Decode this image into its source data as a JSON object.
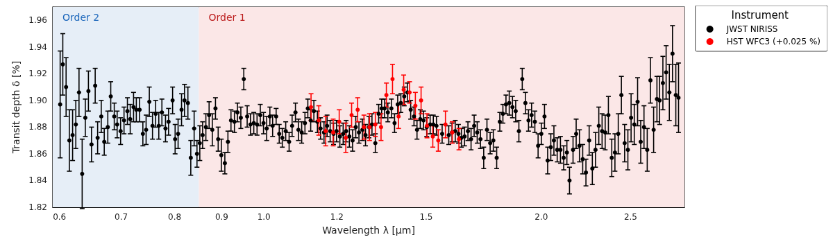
{
  "chart_data": {
    "type": "scatter",
    "xlabel": "Wavelength λ [µm]",
    "ylabel": "Transit depth δ [%]",
    "legend_title": "Instrument",
    "legend": "right",
    "marker": "circle",
    "grid": false,
    "log": "x",
    "xlim": [
      0.59,
      2.86
    ],
    "xticks": [
      0.6,
      0.7,
      0.8,
      0.9,
      {
        "value": 1,
        "label": "1.0"
      },
      1.2,
      1.5,
      {
        "value": 2,
        "label": "2.0"
      },
      2.5
    ],
    "ylim": [
      1.82,
      1.97
    ],
    "yticks": [
      1.82,
      1.84,
      1.86,
      1.88,
      {
        "value": 1.9,
        "label": "1.90"
      },
      1.92,
      1.94,
      1.96
    ],
    "bands": [
      {
        "axis": "x",
        "from": 0.59,
        "to": 0.85,
        "label": "Order 2",
        "color": "#e6eef7"
      },
      {
        "axis": "x",
        "from": 0.85,
        "to": 2.86,
        "label": "Order 1",
        "color": "#fbe7e7"
      }
    ],
    "series": [
      {
        "name": "JWST NIRISS",
        "color": "#000000",
        "x": [
          0.601,
          0.605,
          0.61,
          0.615,
          0.62,
          0.625,
          0.63,
          0.635,
          0.64,
          0.645,
          0.65,
          0.656,
          0.66,
          0.666,
          0.671,
          0.677,
          0.682,
          0.688,
          0.693,
          0.699,
          0.705,
          0.711,
          0.716,
          0.722,
          0.727,
          0.733,
          0.739,
          0.745,
          0.751,
          0.757,
          0.763,
          0.769,
          0.775,
          0.782,
          0.788,
          0.796,
          0.801,
          0.807,
          0.814,
          0.82,
          0.827,
          0.833,
          0.84,
          0.846,
          0.852,
          0.858,
          0.865,
          0.872,
          0.879,
          0.886,
          0.892,
          0.899,
          0.907,
          0.914,
          0.921,
          0.929,
          0.936,
          0.944,
          0.951,
          0.959,
          0.967,
          0.975,
          0.983,
          0.991,
          0.999,
          1.007,
          1.015,
          1.022,
          1.031,
          1.039,
          1.047,
          1.056,
          1.065,
          1.073,
          1.082,
          1.09,
          1.099,
          1.108,
          1.116,
          1.124,
          1.133,
          1.143,
          1.152,
          1.162,
          1.171,
          1.18,
          1.19,
          1.199,
          1.209,
          1.219,
          1.228,
          1.238,
          1.248,
          1.258,
          1.268,
          1.279,
          1.289,
          1.3,
          1.31,
          1.321,
          1.332,
          1.342,
          1.352,
          1.363,
          1.375,
          1.386,
          1.397,
          1.408,
          1.42,
          1.431,
          1.443,
          1.455,
          1.466,
          1.478,
          1.49,
          1.502,
          1.515,
          1.527,
          1.539,
          1.561,
          1.587,
          1.6,
          1.613,
          1.626,
          1.638,
          1.651,
          1.665,
          1.678,
          1.691,
          1.704,
          1.718,
          1.732,
          1.746,
          1.76,
          1.774,
          1.789,
          1.803,
          1.817,
          1.831,
          1.846,
          1.861,
          1.876,
          1.891,
          1.907,
          1.922,
          1.937,
          1.952,
          1.968,
          1.984,
          2.0,
          2.016,
          2.032,
          2.048,
          2.064,
          2.081,
          2.098,
          2.115,
          2.132,
          2.146,
          2.165,
          2.182,
          2.2,
          2.218,
          2.236,
          2.254,
          2.272,
          2.29,
          2.309,
          2.328,
          2.346,
          2.365,
          2.385,
          2.404,
          2.424,
          2.443,
          2.463,
          2.483,
          2.503,
          2.523,
          2.544,
          2.564,
          2.585,
          2.606,
          2.627,
          2.648,
          2.67,
          2.688,
          2.71,
          2.732,
          2.754,
          2.776,
          2.799,
          2.818
        ],
        "values": [
          1.897,
          1.927,
          1.91,
          1.87,
          1.874,
          1.882,
          1.906,
          1.845,
          1.887,
          1.907,
          1.867,
          1.911,
          1.872,
          1.888,
          1.869,
          1.88,
          1.903,
          1.888,
          1.882,
          1.877,
          1.885,
          1.892,
          1.886,
          1.895,
          1.893,
          1.893,
          1.875,
          1.878,
          1.899,
          1.881,
          1.89,
          1.881,
          1.891,
          1.879,
          1.884,
          1.9,
          1.871,
          1.875,
          1.893,
          1.9,
          1.898,
          1.857,
          1.879,
          1.86,
          1.868,
          1.874,
          1.88,
          1.889,
          1.878,
          1.894,
          1.871,
          1.859,
          1.853,
          1.869,
          1.885,
          1.884,
          1.891,
          1.887,
          1.916,
          1.888,
          1.882,
          1.883,
          1.882,
          1.889,
          1.883,
          1.879,
          1.888,
          1.881,
          1.888,
          1.875,
          1.872,
          1.877,
          1.869,
          1.881,
          1.891,
          1.878,
          1.876,
          1.883,
          1.894,
          1.885,
          1.892,
          1.884,
          1.879,
          1.876,
          1.881,
          1.877,
          1.875,
          1.877,
          1.873,
          1.875,
          1.877,
          1.873,
          1.87,
          1.88,
          1.876,
          1.878,
          1.874,
          1.88,
          1.882,
          1.868,
          1.89,
          1.894,
          1.894,
          1.891,
          1.894,
          1.883,
          1.897,
          1.898,
          1.903,
          1.906,
          1.893,
          1.888,
          1.878,
          1.886,
          1.885,
          1.88,
          1.882,
          1.882,
          1.881,
          1.875,
          1.874,
          1.876,
          1.877,
          1.875,
          1.872,
          1.873,
          1.877,
          1.871,
          1.881,
          1.876,
          1.871,
          1.857,
          1.878,
          1.868,
          1.87,
          1.857,
          1.884,
          1.89,
          1.897,
          1.898,
          1.895,
          1.892,
          1.877,
          1.916,
          1.898,
          1.885,
          1.889,
          1.884,
          1.866,
          1.875,
          1.888,
          1.855,
          1.865,
          1.87,
          1.863,
          1.863,
          1.857,
          1.861,
          1.84,
          1.863,
          1.875,
          1.866,
          1.856,
          1.846,
          1.87,
          1.849,
          1.863,
          1.881,
          1.877,
          1.876,
          1.889,
          1.857,
          1.861,
          1.875,
          1.904,
          1.868,
          1.863,
          1.887,
          1.882,
          1.899,
          1.869,
          1.88,
          1.863,
          1.915,
          1.878,
          1.901,
          1.9,
          1.913,
          1.921,
          1.906,
          1.935,
          1.904,
          1.902
        ],
        "errors": [
          0.04,
          0.023,
          0.022,
          0.023,
          0.019,
          0.018,
          0.018,
          0.026,
          0.014,
          0.015,
          0.013,
          0.013,
          0.012,
          0.012,
          0.01,
          0.012,
          0.011,
          0.01,
          0.01,
          0.01,
          0.01,
          0.01,
          0.011,
          0.011,
          0.009,
          0.009,
          0.009,
          0.011,
          0.011,
          0.01,
          0.01,
          0.01,
          0.01,
          0.01,
          0.01,
          0.01,
          0.011,
          0.011,
          0.012,
          0.012,
          0.012,
          0.013,
          0.013,
          0.01,
          0.013,
          0.01,
          0.01,
          0.01,
          0.012,
          0.008,
          0.009,
          0.012,
          0.008,
          0.008,
          0.008,
          0.008,
          0.007,
          0.008,
          0.008,
          0.008,
          0.008,
          0.008,
          0.008,
          0.008,
          0.008,
          0.009,
          0.007,
          0.008,
          0.006,
          0.007,
          0.007,
          0.007,
          0.007,
          0.008,
          0.007,
          0.008,
          0.008,
          0.008,
          0.007,
          0.008,
          0.008,
          0.008,
          0.008,
          0.008,
          0.008,
          0.008,
          0.008,
          0.008,
          0.008,
          0.008,
          0.008,
          0.008,
          0.008,
          0.008,
          0.008,
          0.008,
          0.008,
          0.008,
          0.008,
          0.007,
          0.007,
          0.007,
          0.007,
          0.007,
          0.007,
          0.007,
          0.007,
          0.007,
          0.007,
          0.007,
          0.007,
          0.007,
          0.007,
          0.007,
          0.007,
          0.007,
          0.007,
          0.007,
          0.007,
          0.007,
          0.007,
          0.007,
          0.008,
          0.007,
          0.007,
          0.007,
          0.007,
          0.008,
          0.008,
          0.008,
          0.007,
          0.008,
          0.008,
          0.008,
          0.008,
          0.008,
          0.007,
          0.007,
          0.007,
          0.009,
          0.008,
          0.008,
          0.008,
          0.008,
          0.008,
          0.008,
          0.009,
          0.008,
          0.009,
          0.008,
          0.009,
          0.01,
          0.01,
          0.011,
          0.009,
          0.01,
          0.009,
          0.009,
          0.01,
          0.01,
          0.011,
          0.012,
          0.011,
          0.01,
          0.011,
          0.012,
          0.013,
          0.014,
          0.013,
          0.013,
          0.014,
          0.014,
          0.014,
          0.015,
          0.014,
          0.014,
          0.015,
          0.018,
          0.015,
          0.018,
          0.016,
          0.016,
          0.016,
          0.017,
          0.017,
          0.017,
          0.018,
          0.02,
          0.02,
          0.021,
          0.021,
          0.023,
          0.026
        ]
      },
      {
        "name": "HST WFC3 (+0.025 %)",
        "color": "#ff0000",
        "x": [
          1.125,
          1.147,
          1.167,
          1.189,
          1.207,
          1.227,
          1.245,
          1.264,
          1.284,
          1.302,
          1.321,
          1.34,
          1.358,
          1.379,
          1.4,
          1.418,
          1.439,
          1.46,
          1.481,
          1.503,
          1.525,
          1.546,
          1.574,
          1.601,
          1.628
        ],
        "values": [
          1.895,
          1.885,
          1.877,
          1.876,
          1.884,
          1.872,
          1.889,
          1.893,
          1.88,
          1.88,
          1.882,
          1.88,
          1.904,
          1.916,
          1.888,
          1.908,
          1.906,
          1.896,
          1.9,
          1.881,
          1.873,
          1.87,
          1.882,
          1.876,
          1.871
        ],
        "errors": [
          0.01,
          0.011,
          0.011,
          0.01,
          0.009,
          0.011,
          0.009,
          0.009,
          0.009,
          0.01,
          0.009,
          0.01,
          0.009,
          0.011,
          0.009,
          0.011,
          0.008,
          0.01,
          0.01,
          0.009,
          0.008,
          0.008,
          0.01,
          0.008,
          0.008
        ]
      }
    ]
  }
}
